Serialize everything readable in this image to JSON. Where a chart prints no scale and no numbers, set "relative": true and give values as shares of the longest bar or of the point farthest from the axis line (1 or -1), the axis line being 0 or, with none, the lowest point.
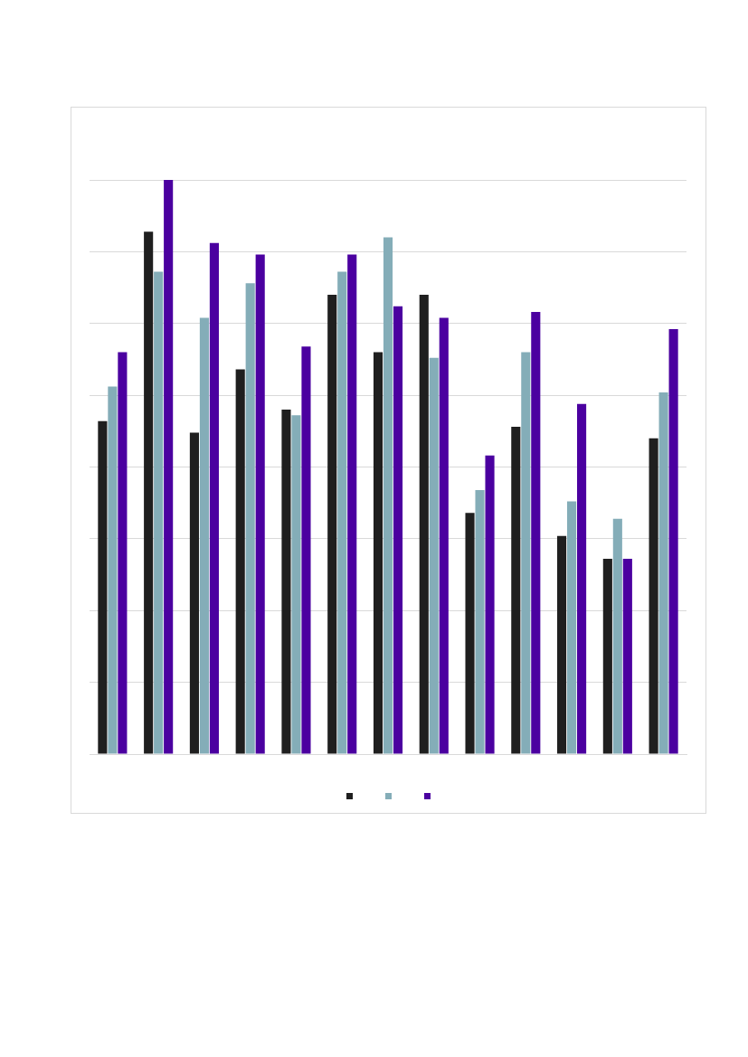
{
  "chart_data": {
    "type": "bar",
    "relative": true,
    "categories": [
      null,
      null,
      null,
      null,
      null,
      null,
      null,
      null,
      null,
      null,
      null,
      null,
      null
    ],
    "series": [
      {
        "color": "#1f1f1f",
        "values": [
          0.58,
          0.91,
          0.56,
          0.67,
          0.6,
          0.8,
          0.7,
          0.8,
          0.42,
          0.57,
          0.38,
          0.34,
          0.55
        ]
      },
      {
        "color": "#84adb8",
        "values": [
          0.64,
          0.84,
          0.76,
          0.82,
          0.59,
          0.84,
          0.9,
          0.69,
          0.46,
          0.7,
          0.44,
          0.41,
          0.63
        ]
      },
      {
        "color": "#4b00a0",
        "values": [
          0.7,
          1,
          0.89,
          0.87,
          0.71,
          0.87,
          0.78,
          0.76,
          0.52,
          0.77,
          0.61,
          0.34,
          0.74
        ]
      }
    ],
    "grid": "y"
  }
}
